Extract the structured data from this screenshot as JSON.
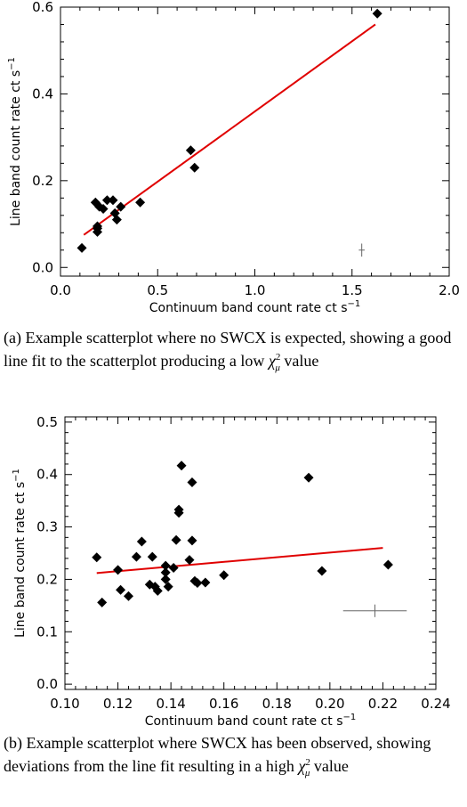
{
  "chart_data": [
    {
      "type": "scatter",
      "xlabel": "Continuum band count rate ct s",
      "xlabel_sup": "−1",
      "ylabel": "Line band count rate ct s",
      "ylabel_sup": "−1",
      "xlim": [
        0.0,
        2.0
      ],
      "ylim": [
        -0.02,
        0.6
      ],
      "xticks": [
        "0.0",
        "0.5",
        "1.0",
        "1.5",
        "2.0"
      ],
      "xtick_values": [
        0.0,
        0.5,
        1.0,
        1.5,
        2.0
      ],
      "yticks": [
        "0.0",
        "0.2",
        "0.4",
        "0.6"
      ],
      "ytick_values": [
        0.0,
        0.2,
        0.4,
        0.6
      ],
      "series": [
        {
          "points": [
            [
              0.11,
              0.045
            ],
            [
              0.19,
              0.082
            ],
            [
              0.19,
              0.09
            ],
            [
              0.19,
              0.095
            ],
            [
              0.18,
              0.15
            ],
            [
              0.2,
              0.14
            ],
            [
              0.22,
              0.135
            ],
            [
              0.24,
              0.155
            ],
            [
              0.27,
              0.155
            ],
            [
              0.28,
              0.125
            ],
            [
              0.29,
              0.11
            ],
            [
              0.31,
              0.14
            ],
            [
              0.41,
              0.15
            ],
            [
              0.67,
              0.27
            ],
            [
              0.69,
              0.23
            ],
            [
              1.63,
              0.585
            ]
          ],
          "color": "#000000"
        }
      ],
      "fit_line": {
        "x": [
          0.12,
          1.62
        ],
        "y": [
          0.075,
          0.56
        ],
        "color": "#e00000"
      },
      "error_bar": {
        "x": 1.55,
        "y": 0.04,
        "xerr": 0.015,
        "yerr": 0.015
      }
    },
    {
      "type": "scatter",
      "xlabel": "Continuum band count rate ct s",
      "xlabel_sup": "−1",
      "ylabel": "Line band count rate ct s",
      "ylabel_sup": "−1",
      "xlim": [
        0.1,
        0.24
      ],
      "ylim": [
        -0.01,
        0.51
      ],
      "xticks": [
        "0.10",
        "0.12",
        "0.14",
        "0.16",
        "0.18",
        "0.20",
        "0.22",
        "0.24"
      ],
      "xtick_values": [
        0.1,
        0.12,
        0.14,
        0.16,
        0.18,
        0.2,
        0.22,
        0.24
      ],
      "yticks": [
        "0.0",
        "0.1",
        "0.2",
        "0.3",
        "0.4",
        "0.5"
      ],
      "ytick_values": [
        0.0,
        0.1,
        0.2,
        0.3,
        0.4,
        0.5
      ],
      "series": [
        {
          "points": [
            [
              0.112,
              0.242
            ],
            [
              0.114,
              0.156
            ],
            [
              0.12,
              0.218
            ],
            [
              0.121,
              0.18
            ],
            [
              0.124,
              0.168
            ],
            [
              0.127,
              0.243
            ],
            [
              0.129,
              0.272
            ],
            [
              0.132,
              0.19
            ],
            [
              0.133,
              0.243
            ],
            [
              0.134,
              0.186
            ],
            [
              0.135,
              0.178
            ],
            [
              0.138,
              0.226
            ],
            [
              0.138,
              0.213
            ],
            [
              0.138,
              0.2
            ],
            [
              0.139,
              0.186
            ],
            [
              0.141,
              0.222
            ],
            [
              0.142,
              0.275
            ],
            [
              0.143,
              0.333
            ],
            [
              0.143,
              0.327
            ],
            [
              0.144,
              0.417
            ],
            [
              0.147,
              0.237
            ],
            [
              0.148,
              0.385
            ],
            [
              0.148,
              0.274
            ],
            [
              0.149,
              0.197
            ],
            [
              0.15,
              0.193
            ],
            [
              0.153,
              0.194
            ],
            [
              0.16,
              0.208
            ],
            [
              0.192,
              0.394
            ],
            [
              0.197,
              0.216
            ],
            [
              0.222,
              0.228
            ]
          ],
          "color": "#000000"
        }
      ],
      "fit_line": {
        "x": [
          0.112,
          0.22
        ],
        "y": [
          0.212,
          0.26
        ],
        "color": "#e00000"
      },
      "error_bar": {
        "x": 0.217,
        "y": 0.14,
        "xerr": 0.012,
        "yerr": 0.012
      }
    }
  ],
  "captions": {
    "a": {
      "label": "(a)",
      "text_before": "Example scatterplot where no SWCX is expected, showing a good line fit to the scatterplot producing a low ",
      "chi": "χ",
      "chi_sup": "2",
      "chi_sub": "μ",
      "text_after": " value"
    },
    "b": {
      "label": "(b)",
      "text_before": "Example scatterplot where SWCX has been observed, showing deviations from the line fit resulting in a high ",
      "chi": "χ",
      "chi_sup": "2",
      "chi_sub": "μ",
      "text_after": " value"
    }
  }
}
